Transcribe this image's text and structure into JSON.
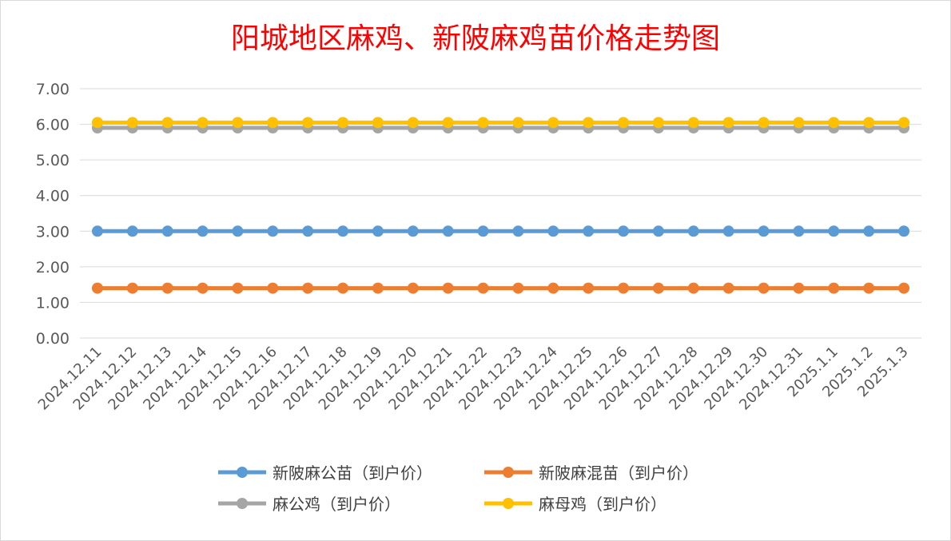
{
  "chart_data": {
    "type": "line",
    "title": "阳城地区麻鸡、新陂麻鸡苗价格走势图",
    "xlabel": "",
    "ylabel": "",
    "ylim": [
      0,
      7
    ],
    "yticks": [
      "0.00",
      "1.00",
      "2.00",
      "3.00",
      "4.00",
      "5.00",
      "6.00",
      "7.00"
    ],
    "grid": true,
    "legend_position": "bottom",
    "x": [
      "2024.12.11",
      "2024.12.12",
      "2024.12.13",
      "2024.12.14",
      "2024.12.15",
      "2024.12.16",
      "2024.12.17",
      "2024.12.18",
      "2024.12.19",
      "2024.12.20",
      "2024.12.21",
      "2024.12.22",
      "2024.12.23",
      "2024.12.24",
      "2024.12.25",
      "2024.12.26",
      "2024.12.27",
      "2024.12.28",
      "2024.12.29",
      "2024.12.30",
      "2024.12.31",
      "2025.1.1",
      "2025.1.2",
      "2025.1.3"
    ],
    "series": [
      {
        "name": "新陂麻公苗（到户价）",
        "color": "#5b9bd5",
        "values": [
          3.0,
          3.0,
          3.0,
          3.0,
          3.0,
          3.0,
          3.0,
          3.0,
          3.0,
          3.0,
          3.0,
          3.0,
          3.0,
          3.0,
          3.0,
          3.0,
          3.0,
          3.0,
          3.0,
          3.0,
          3.0,
          3.0,
          3.0,
          3.0
        ]
      },
      {
        "name": "新陂麻混苗（到户价）",
        "color": "#ed7d31",
        "values": [
          1.4,
          1.4,
          1.4,
          1.4,
          1.4,
          1.4,
          1.4,
          1.4,
          1.4,
          1.4,
          1.4,
          1.4,
          1.4,
          1.4,
          1.4,
          1.4,
          1.4,
          1.4,
          1.4,
          1.4,
          1.4,
          1.4,
          1.4,
          1.4
        ]
      },
      {
        "name": "麻公鸡（到户价）",
        "color": "#a5a5a5",
        "values": [
          5.9,
          5.9,
          5.9,
          5.9,
          5.9,
          5.9,
          5.9,
          5.9,
          5.9,
          5.9,
          5.9,
          5.9,
          5.9,
          5.9,
          5.9,
          5.9,
          5.9,
          5.9,
          5.9,
          5.9,
          5.9,
          5.9,
          5.9,
          5.9
        ]
      },
      {
        "name": "麻母鸡（到户价）",
        "color": "#ffc000",
        "values": [
          6.05,
          6.05,
          6.05,
          6.05,
          6.05,
          6.05,
          6.05,
          6.05,
          6.05,
          6.05,
          6.05,
          6.05,
          6.05,
          6.05,
          6.05,
          6.05,
          6.05,
          6.05,
          6.05,
          6.05,
          6.05,
          6.05,
          6.05,
          6.05
        ]
      }
    ]
  }
}
